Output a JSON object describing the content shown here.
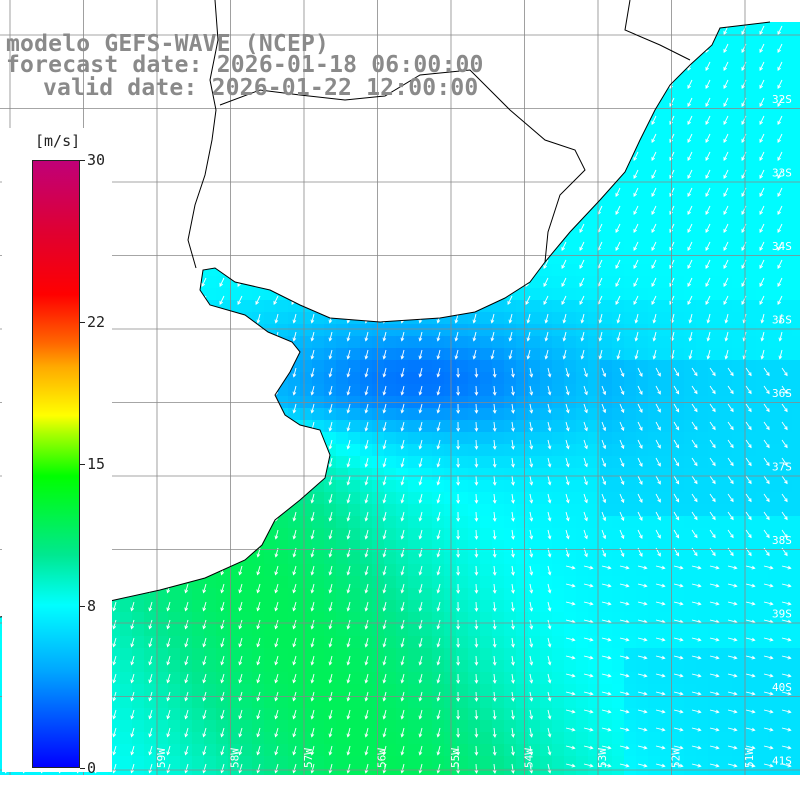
{
  "title": {
    "model": "modelo GEFS-WAVE (NCEP)",
    "forecast": "forecast date: 2026-01-18 06:00:00",
    "valid": "valid date: 2026-01-22 12:00:00"
  },
  "legend": {
    "unit": "[m/s]",
    "ticks": [
      {
        "value": 30,
        "label": "30"
      },
      {
        "value": 22,
        "label": "22"
      },
      {
        "value": 15,
        "label": "15"
      },
      {
        "value": 8,
        "label": "8"
      },
      {
        "value": 0,
        "label": "0"
      }
    ],
    "min": 0,
    "max": 30
  },
  "map": {
    "variable": "wind speed with direction arrows",
    "lat_labels": [
      "32S",
      "33S",
      "34S",
      "35S",
      "36S",
      "37S",
      "38S",
      "39S",
      "40S",
      "41S"
    ],
    "lon_labels": [
      "61W",
      "60W",
      "59W",
      "58W",
      "57W",
      "56W",
      "55W",
      "54W",
      "53W",
      "52W",
      "51W"
    ],
    "colors": {
      "land": "#ffffff",
      "grid": "#888888",
      "coast": "#000000",
      "arrow": "#ffffff"
    }
  }
}
